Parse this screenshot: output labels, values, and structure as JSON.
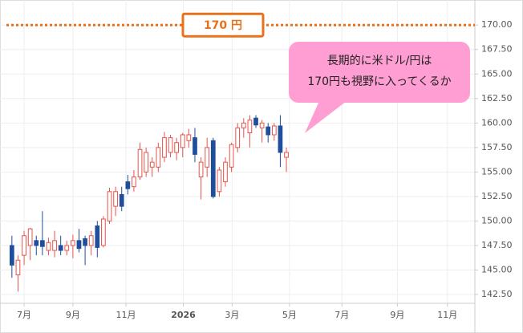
{
  "chart_data": {
    "type": "candlestick",
    "x": [
      0,
      1,
      2,
      3,
      4,
      5,
      6,
      7,
      8,
      9,
      10,
      11,
      12,
      13,
      14,
      15,
      16,
      17,
      18,
      19,
      20,
      21,
      22,
      23,
      24,
      25,
      26,
      27,
      28,
      29,
      30,
      31,
      32,
      33,
      34,
      35,
      36,
      37,
      38,
      39,
      40,
      41,
      42,
      43,
      44,
      45
    ],
    "open": [
      147.5,
      144.5,
      146.5,
      147.5,
      148,
      148,
      147,
      147,
      147.5,
      147,
      147.5,
      148,
      148.2,
      147.5,
      149.5,
      147.5,
      150,
      151.5,
      152.7,
      154,
      153.5,
      154.5,
      155,
      155.5,
      155.5,
      156.5,
      157,
      157,
      157.5,
      158.2,
      158.5,
      154.5,
      155.5,
      158.2,
      153,
      154,
      155.5,
      157.5,
      159.5,
      159,
      160.5,
      159.5,
      159.6,
      158.8,
      159.7,
      156.5
    ],
    "high": [
      148.5,
      146.5,
      149,
      149.3,
      148.5,
      151,
      148.3,
      149,
      148.5,
      148,
      148.6,
      149.2,
      148.5,
      149,
      150,
      150.5,
      153.4,
      153.5,
      153.5,
      154.7,
      155.2,
      158,
      157.5,
      156.5,
      158,
      159.1,
      158.8,
      158.5,
      159,
      159.4,
      159.5,
      156.5,
      158.5,
      158.5,
      155.5,
      156.5,
      158,
      160,
      160.5,
      160.8,
      160.8,
      160.3,
      160,
      160,
      160.8,
      157.5
    ],
    "low": [
      144.2,
      142.8,
      145.5,
      146,
      146.5,
      146.5,
      146.5,
      146.3,
      146.5,
      146.5,
      146.2,
      146.8,
      145.5,
      146.5,
      146.3,
      147.3,
      149.7,
      150.5,
      151,
      152.7,
      153,
      154.2,
      154.5,
      154.5,
      155,
      156,
      156.5,
      156.2,
      156.5,
      157.5,
      156,
      152.2,
      154.5,
      152.3,
      152.5,
      153.5,
      155,
      157,
      158.5,
      157.5,
      159.5,
      158,
      158,
      158.2,
      155.5,
      155
    ],
    "close": [
      145.5,
      146,
      148.5,
      149.2,
      147.5,
      147.4,
      147.8,
      148,
      147,
      147.5,
      148,
      147.2,
      147.5,
      148.5,
      147.3,
      150.2,
      153,
      153,
      151.5,
      153.3,
      154.5,
      157.3,
      157,
      156,
      157.5,
      158.5,
      158.5,
      158,
      158.8,
      158.8,
      156.8,
      156,
      157.5,
      152.5,
      155.2,
      156,
      157.8,
      159.5,
      160,
      160.3,
      159.8,
      160,
      158.8,
      159.7,
      157,
      157
    ],
    "up_color": "#e8534a",
    "down_color": "#1f4e9c",
    "xlim": [
      -0.9,
      75.9
    ],
    "xticks": [
      {
        "value": 2,
        "label": "7月"
      },
      {
        "value": 10,
        "label": "9月"
      },
      {
        "value": 18.7,
        "label": "11月"
      },
      {
        "value": 28.1,
        "label": "2026"
      },
      {
        "value": 36.1,
        "label": "3月"
      },
      {
        "value": 45.5,
        "label": "5月"
      },
      {
        "value": 54.1,
        "label": "7月"
      },
      {
        "value": 63.2,
        "label": "9月"
      },
      {
        "value": 71.4,
        "label": "11月"
      }
    ],
    "ylim": [
      141.6,
      171.9
    ],
    "yticks": [
      {
        "value": 142.5,
        "label": "142.50"
      },
      {
        "value": 145,
        "label": "145.00"
      },
      {
        "value": 147.5,
        "label": "147.50"
      },
      {
        "value": 150,
        "label": "150.00"
      },
      {
        "value": 152.5,
        "label": "152.50"
      },
      {
        "value": 155,
        "label": "155.00"
      },
      {
        "value": 157.5,
        "label": "157.50"
      },
      {
        "value": 160,
        "label": "160.00"
      },
      {
        "value": 162.5,
        "label": "162.50"
      },
      {
        "value": 165,
        "label": "165.00"
      },
      {
        "value": 167.5,
        "label": "167.50"
      },
      {
        "value": 170,
        "label": "170.00"
      }
    ],
    "grid": true,
    "hline": {
      "value": 170,
      "label": "170 円",
      "color": "#e8721c"
    },
    "annotation": [
      "長期的に米ドル/円は",
      "170円も視野に入ってくるか"
    ]
  }
}
